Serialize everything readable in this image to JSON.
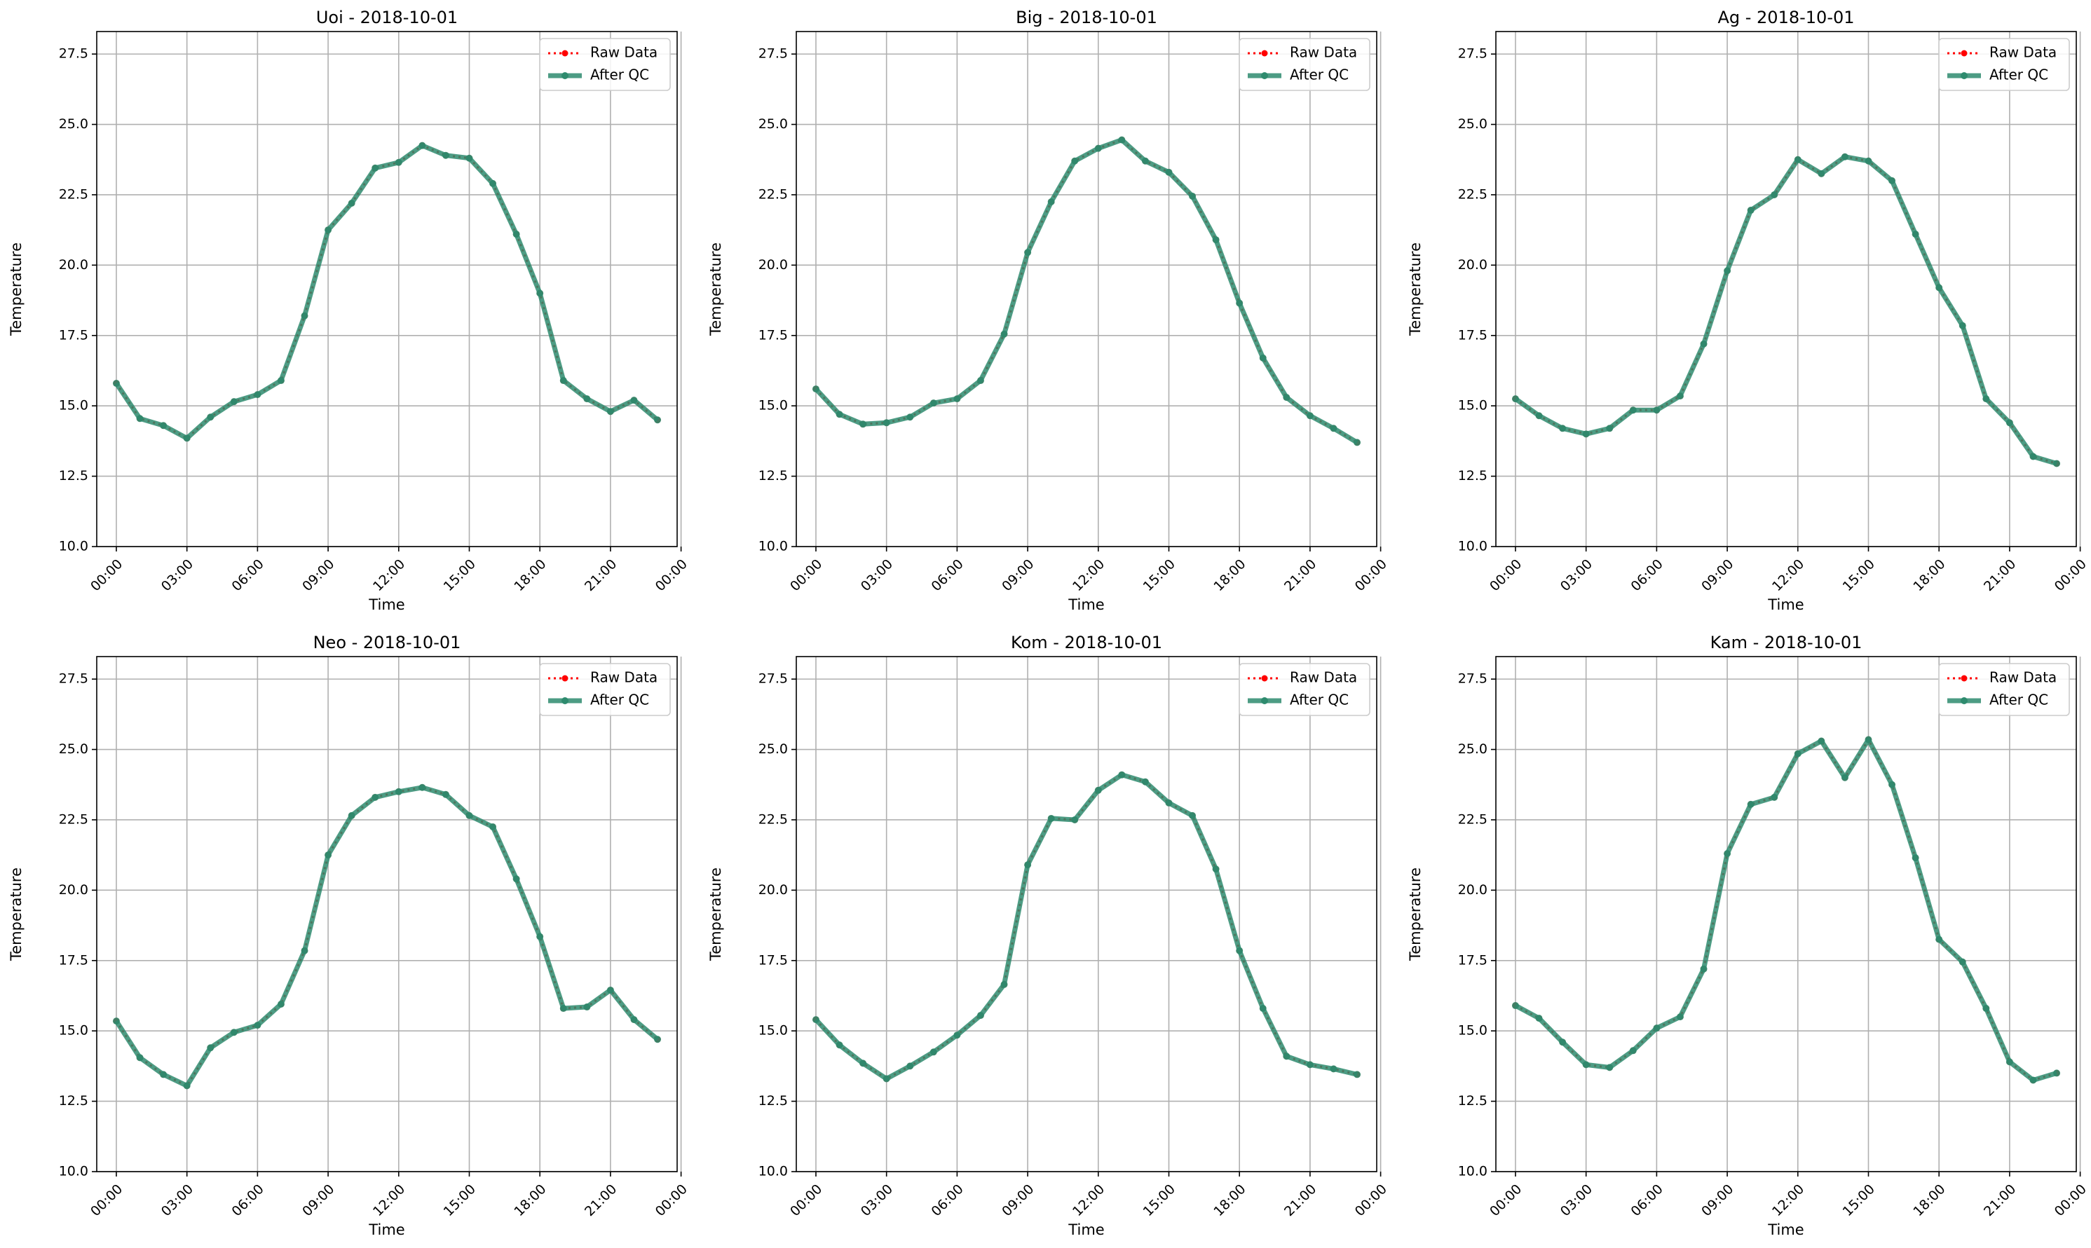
{
  "raw_color": "#ff0000",
  "qc_color": "#2e8b6e",
  "chart_data": [
    {
      "type": "line",
      "title": "Uoi - 2018-10-01",
      "xlabel": "Time",
      "ylabel": "Temperature",
      "xlim": [
        "-00:50",
        "23:50"
      ],
      "ylim": [
        10.0,
        28.3
      ],
      "x_ticks": [
        "00:00",
        "03:00",
        "06:00",
        "09:00",
        "12:00",
        "15:00",
        "18:00",
        "21:00",
        "00:00"
      ],
      "y_ticks": [
        "10.0",
        "12.5",
        "15.0",
        "17.5",
        "20.0",
        "22.5",
        "25.0",
        "27.5"
      ],
      "grid": true,
      "legend": "top-right",
      "x": [
        "00:00",
        "01:00",
        "02:00",
        "03:00",
        "04:00",
        "05:00",
        "06:00",
        "07:00",
        "08:00",
        "09:00",
        "10:00",
        "11:00",
        "12:00",
        "13:00",
        "14:00",
        "15:00",
        "16:00",
        "17:00",
        "18:00",
        "19:00",
        "20:00",
        "21:00",
        "22:00",
        "23:00"
      ],
      "series": [
        {
          "name": "Raw Data",
          "values": [
            15.8,
            14.55,
            14.3,
            13.85,
            14.6,
            15.15,
            15.4,
            15.9,
            18.2,
            21.25,
            22.2,
            23.45,
            23.65,
            24.25,
            23.9,
            23.8,
            22.9,
            21.1,
            19.0,
            15.9,
            15.25,
            14.8,
            15.2,
            14.5
          ]
        },
        {
          "name": "After QC",
          "values": [
            15.8,
            14.55,
            14.3,
            13.85,
            14.6,
            15.15,
            15.4,
            15.9,
            18.2,
            21.25,
            22.2,
            23.45,
            23.65,
            24.25,
            23.9,
            23.8,
            22.9,
            21.1,
            19.0,
            15.9,
            15.25,
            14.8,
            15.2,
            14.5
          ]
        }
      ]
    },
    {
      "type": "line",
      "title": "Big - 2018-10-01",
      "xlabel": "Time",
      "ylabel": "Temperature",
      "xlim": [
        "-00:50",
        "23:50"
      ],
      "ylim": [
        10.0,
        28.3
      ],
      "x_ticks": [
        "00:00",
        "03:00",
        "06:00",
        "09:00",
        "12:00",
        "15:00",
        "18:00",
        "21:00",
        "00:00"
      ],
      "y_ticks": [
        "10.0",
        "12.5",
        "15.0",
        "17.5",
        "20.0",
        "22.5",
        "25.0",
        "27.5"
      ],
      "grid": true,
      "legend": "top-right",
      "x": [
        "00:00",
        "01:00",
        "02:00",
        "03:00",
        "04:00",
        "05:00",
        "06:00",
        "07:00",
        "08:00",
        "09:00",
        "10:00",
        "11:00",
        "12:00",
        "13:00",
        "14:00",
        "15:00",
        "16:00",
        "17:00",
        "18:00",
        "19:00",
        "20:00",
        "21:00",
        "22:00",
        "23:00"
      ],
      "series": [
        {
          "name": "Raw Data",
          "values": [
            15.6,
            14.7,
            14.35,
            14.4,
            14.6,
            15.1,
            15.25,
            15.9,
            17.55,
            20.45,
            22.25,
            23.7,
            24.15,
            24.45,
            23.7,
            23.3,
            22.45,
            20.9,
            18.65,
            16.7,
            15.3,
            14.65,
            14.2,
            13.7
          ]
        },
        {
          "name": "After QC",
          "values": [
            15.6,
            14.7,
            14.35,
            14.4,
            14.6,
            15.1,
            15.25,
            15.9,
            17.55,
            20.45,
            22.25,
            23.7,
            24.15,
            24.45,
            23.7,
            23.3,
            22.45,
            20.9,
            18.65,
            16.7,
            15.3,
            14.65,
            14.2,
            13.7
          ]
        }
      ]
    },
    {
      "type": "line",
      "title": "Ag - 2018-10-01",
      "xlabel": "Time",
      "ylabel": "Temperature",
      "xlim": [
        "-00:50",
        "23:50"
      ],
      "ylim": [
        10.0,
        28.3
      ],
      "x_ticks": [
        "00:00",
        "03:00",
        "06:00",
        "09:00",
        "12:00",
        "15:00",
        "18:00",
        "21:00",
        "00:00"
      ],
      "y_ticks": [
        "10.0",
        "12.5",
        "15.0",
        "17.5",
        "20.0",
        "22.5",
        "25.0",
        "27.5"
      ],
      "grid": true,
      "legend": "top-right",
      "x": [
        "00:00",
        "01:00",
        "02:00",
        "03:00",
        "04:00",
        "05:00",
        "06:00",
        "07:00",
        "08:00",
        "09:00",
        "10:00",
        "11:00",
        "12:00",
        "13:00",
        "14:00",
        "15:00",
        "16:00",
        "17:00",
        "18:00",
        "19:00",
        "20:00",
        "21:00",
        "22:00",
        "23:00"
      ],
      "series": [
        {
          "name": "Raw Data",
          "values": [
            15.25,
            14.65,
            14.2,
            14.0,
            14.2,
            14.85,
            14.85,
            15.35,
            17.2,
            19.8,
            21.95,
            22.5,
            23.75,
            23.25,
            23.85,
            23.7,
            23.0,
            21.1,
            19.2,
            17.85,
            15.25,
            14.4,
            13.2,
            12.95
          ]
        },
        {
          "name": "After QC",
          "values": [
            15.25,
            14.65,
            14.2,
            14.0,
            14.2,
            14.85,
            14.85,
            15.35,
            17.2,
            19.8,
            21.95,
            22.5,
            23.75,
            23.25,
            23.85,
            23.7,
            23.0,
            21.1,
            19.2,
            17.85,
            15.25,
            14.4,
            13.2,
            12.95
          ]
        }
      ]
    },
    {
      "type": "line",
      "title": "Neo - 2018-10-01",
      "xlabel": "Time",
      "ylabel": "Temperature",
      "xlim": [
        "-00:50",
        "23:50"
      ],
      "ylim": [
        10.0,
        28.3
      ],
      "x_ticks": [
        "00:00",
        "03:00",
        "06:00",
        "09:00",
        "12:00",
        "15:00",
        "18:00",
        "21:00",
        "00:00"
      ],
      "y_ticks": [
        "10.0",
        "12.5",
        "15.0",
        "17.5",
        "20.0",
        "22.5",
        "25.0",
        "27.5"
      ],
      "grid": true,
      "legend": "top-right",
      "x": [
        "00:00",
        "01:00",
        "02:00",
        "03:00",
        "04:00",
        "05:00",
        "06:00",
        "07:00",
        "08:00",
        "09:00",
        "10:00",
        "11:00",
        "12:00",
        "13:00",
        "14:00",
        "15:00",
        "16:00",
        "17:00",
        "18:00",
        "19:00",
        "20:00",
        "21:00",
        "22:00",
        "23:00"
      ],
      "series": [
        {
          "name": "Raw Data",
          "values": [
            15.35,
            14.05,
            13.45,
            13.05,
            14.4,
            14.95,
            15.2,
            15.95,
            17.85,
            21.25,
            22.65,
            23.3,
            23.5,
            23.65,
            23.4,
            22.65,
            22.25,
            20.4,
            18.35,
            15.8,
            15.85,
            16.45,
            15.4,
            14.7
          ]
        },
        {
          "name": "After QC",
          "values": [
            15.35,
            14.05,
            13.45,
            13.05,
            14.4,
            14.95,
            15.2,
            15.95,
            17.85,
            21.25,
            22.65,
            23.3,
            23.5,
            23.65,
            23.4,
            22.65,
            22.25,
            20.4,
            18.35,
            15.8,
            15.85,
            16.45,
            15.4,
            14.7
          ]
        }
      ]
    },
    {
      "type": "line",
      "title": "Kom - 2018-10-01",
      "xlabel": "Time",
      "ylabel": "Temperature",
      "xlim": [
        "-00:50",
        "23:50"
      ],
      "ylim": [
        10.0,
        28.3
      ],
      "x_ticks": [
        "00:00",
        "03:00",
        "06:00",
        "09:00",
        "12:00",
        "15:00",
        "18:00",
        "21:00",
        "00:00"
      ],
      "y_ticks": [
        "10.0",
        "12.5",
        "15.0",
        "17.5",
        "20.0",
        "22.5",
        "25.0",
        "27.5"
      ],
      "grid": true,
      "legend": "top-right",
      "x": [
        "00:00",
        "01:00",
        "02:00",
        "03:00",
        "04:00",
        "05:00",
        "06:00",
        "07:00",
        "08:00",
        "09:00",
        "10:00",
        "11:00",
        "12:00",
        "13:00",
        "14:00",
        "15:00",
        "16:00",
        "17:00",
        "18:00",
        "19:00",
        "20:00",
        "21:00",
        "22:00",
        "23:00"
      ],
      "series": [
        {
          "name": "Raw Data",
          "values": [
            15.4,
            14.5,
            13.85,
            13.3,
            13.75,
            14.25,
            14.85,
            15.55,
            16.65,
            20.9,
            22.55,
            22.5,
            23.55,
            24.1,
            23.85,
            23.1,
            22.65,
            20.75,
            17.85,
            15.8,
            14.1,
            13.8,
            13.65,
            13.45
          ]
        },
        {
          "name": "After QC",
          "values": [
            15.4,
            14.5,
            13.85,
            13.3,
            13.75,
            14.25,
            14.85,
            15.55,
            16.65,
            20.9,
            22.55,
            22.5,
            23.55,
            24.1,
            23.85,
            23.1,
            22.65,
            20.75,
            17.85,
            15.8,
            14.1,
            13.8,
            13.65,
            13.45
          ]
        }
      ]
    },
    {
      "type": "line",
      "title": "Kam - 2018-10-01",
      "xlabel": "Time",
      "ylabel": "Temperature",
      "xlim": [
        "-00:50",
        "23:50"
      ],
      "ylim": [
        10.0,
        28.3
      ],
      "x_ticks": [
        "00:00",
        "03:00",
        "06:00",
        "09:00",
        "12:00",
        "15:00",
        "18:00",
        "21:00",
        "00:00"
      ],
      "y_ticks": [
        "10.0",
        "12.5",
        "15.0",
        "17.5",
        "20.0",
        "22.5",
        "25.0",
        "27.5"
      ],
      "grid": true,
      "legend": "top-right",
      "x": [
        "00:00",
        "01:00",
        "02:00",
        "03:00",
        "04:00",
        "05:00",
        "06:00",
        "07:00",
        "08:00",
        "09:00",
        "10:00",
        "11:00",
        "12:00",
        "13:00",
        "14:00",
        "15:00",
        "16:00",
        "17:00",
        "18:00",
        "19:00",
        "20:00",
        "21:00",
        "22:00",
        "23:00"
      ],
      "series": [
        {
          "name": "Raw Data",
          "values": [
            15.9,
            15.45,
            14.6,
            13.8,
            13.7,
            14.3,
            15.1,
            15.5,
            17.2,
            21.3,
            23.05,
            23.3,
            24.85,
            25.3,
            24.0,
            25.35,
            23.75,
            21.15,
            18.25,
            17.45,
            15.8,
            13.9,
            13.25,
            13.5
          ]
        },
        {
          "name": "After QC",
          "values": [
            15.9,
            15.45,
            14.6,
            13.8,
            13.7,
            14.3,
            15.1,
            15.5,
            17.2,
            21.3,
            23.05,
            23.3,
            24.85,
            25.3,
            24.0,
            25.35,
            23.75,
            21.15,
            18.25,
            17.45,
            15.8,
            13.9,
            13.25,
            13.5
          ]
        }
      ]
    }
  ]
}
